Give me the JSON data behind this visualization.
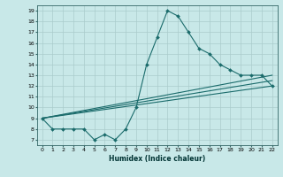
{
  "title": "",
  "xlabel": "Humidex (Indice chaleur)",
  "bg_color": "#c8e8e8",
  "grid_color": "#aacccc",
  "line_color": "#1a6b6b",
  "xlim": [
    -0.5,
    22.5
  ],
  "ylim": [
    6.5,
    19.5
  ],
  "xticks": [
    0,
    1,
    2,
    3,
    4,
    5,
    6,
    7,
    8,
    9,
    10,
    11,
    12,
    13,
    14,
    15,
    16,
    17,
    18,
    19,
    20,
    21,
    22
  ],
  "yticks": [
    7,
    8,
    9,
    10,
    11,
    12,
    13,
    14,
    15,
    16,
    17,
    18,
    19
  ],
  "series": [
    [
      0,
      9
    ],
    [
      1,
      8
    ],
    [
      2,
      8
    ],
    [
      3,
      8
    ],
    [
      4,
      8
    ],
    [
      5,
      7
    ],
    [
      6,
      7.5
    ],
    [
      7,
      7
    ],
    [
      8,
      8
    ],
    [
      9,
      10
    ],
    [
      10,
      14
    ],
    [
      11,
      16.5
    ],
    [
      12,
      19
    ],
    [
      13,
      18.5
    ],
    [
      14,
      17
    ],
    [
      15,
      15.5
    ],
    [
      16,
      15
    ],
    [
      17,
      14
    ],
    [
      18,
      13.5
    ],
    [
      19,
      13
    ],
    [
      20,
      13
    ],
    [
      21,
      13
    ],
    [
      22,
      12
    ]
  ],
  "line2": [
    [
      0,
      9
    ],
    [
      22,
      13.0
    ]
  ],
  "line3": [
    [
      0,
      9
    ],
    [
      22,
      12.0
    ]
  ],
  "line4": [
    [
      0,
      9
    ],
    [
      22,
      12.5
    ]
  ]
}
